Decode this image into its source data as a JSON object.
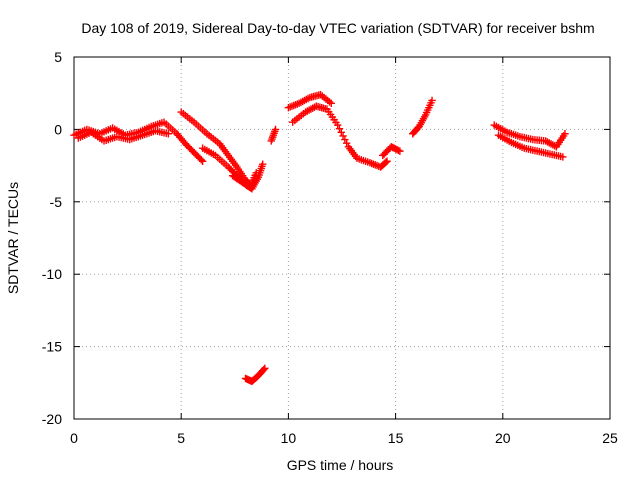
{
  "chart_data": {
    "type": "scatter",
    "title": "Day 108 of 2019, Sidereal Day-to-day VTEC variation (SDTVAR) for receiver bshm",
    "xlabel": "GPS time / hours",
    "ylabel": "SDTVAR / TECUs",
    "xlim": [
      0,
      25
    ],
    "ylim": [
      -20,
      5
    ],
    "xticks": [
      0,
      5,
      10,
      15,
      20,
      25
    ],
    "yticks": [
      5,
      0,
      -5,
      -10,
      -15,
      -20
    ],
    "grid": true,
    "marker": "plus",
    "series": [
      {
        "name": "SDTVAR",
        "color": "#ff0000",
        "segments": [
          {
            "x": [
              0.0,
              0.6,
              1.2,
              1.8,
              2.4,
              3.0,
              3.6,
              4.2,
              4.8,
              5.2,
              5.6,
              6.0
            ],
            "y": [
              -0.4,
              0.0,
              -0.3,
              0.1,
              -0.4,
              -0.2,
              0.2,
              0.5,
              -0.3,
              -1.0,
              -1.6,
              -2.2
            ]
          },
          {
            "x": [
              0.2,
              0.8,
              1.4,
              2.0,
              2.6,
              3.2,
              3.8,
              4.4
            ],
            "y": [
              -0.6,
              -0.2,
              -0.8,
              -0.5,
              -0.7,
              -0.4,
              -0.1,
              -0.3
            ]
          },
          {
            "x": [
              5.0,
              5.6,
              6.2,
              6.8,
              7.2,
              7.6,
              8.0,
              8.2
            ],
            "y": [
              1.2,
              0.5,
              -0.3,
              -1.0,
              -1.8,
              -2.6,
              -3.5,
              -3.8
            ]
          },
          {
            "x": [
              6.0,
              6.6,
              7.2,
              7.6,
              8.0,
              8.3,
              8.6,
              8.8
            ],
            "y": [
              -1.3,
              -1.8,
              -2.6,
              -3.2,
              -3.8,
              -4.1,
              -3.3,
              -2.4
            ]
          },
          {
            "x": [
              7.4,
              7.8,
              8.2,
              8.5
            ],
            "y": [
              -3.2,
              -3.6,
              -4.0,
              -3.0
            ]
          },
          {
            "x": [
              9.2,
              9.4
            ],
            "y": [
              -0.8,
              0.0
            ]
          },
          {
            "x": [
              10.0,
              10.5,
              11.0,
              11.5,
              12.0
            ],
            "y": [
              1.5,
              1.8,
              2.2,
              2.4,
              1.8
            ]
          },
          {
            "x": [
              10.2,
              10.8,
              11.3,
              11.8,
              12.3,
              12.8,
              13.2,
              13.8,
              14.3,
              14.6
            ],
            "y": [
              0.5,
              1.2,
              1.6,
              1.4,
              0.3,
              -1.2,
              -2.0,
              -2.3,
              -2.6,
              -2.2
            ]
          },
          {
            "x": [
              14.4,
              14.8,
              15.2
            ],
            "y": [
              -1.8,
              -1.2,
              -1.5
            ]
          },
          {
            "x": [
              15.8,
              16.1,
              16.4,
              16.7
            ],
            "y": [
              -0.3,
              0.2,
              1.0,
              2.0
            ]
          },
          {
            "x": [
              19.6,
              20.2,
              20.8,
              21.4,
              22.0,
              22.5,
              22.9
            ],
            "y": [
              0.3,
              -0.2,
              -0.5,
              -0.7,
              -0.8,
              -1.2,
              -0.3
            ]
          },
          {
            "x": [
              19.8,
              20.4,
              21.0,
              21.6,
              22.2,
              22.8
            ],
            "y": [
              -0.4,
              -0.9,
              -1.3,
              -1.5,
              -1.7,
              -1.9
            ]
          },
          {
            "x": [
              8.0,
              8.3,
              8.6,
              8.9
            ],
            "y": [
              -17.2,
              -17.4,
              -17.0,
              -16.5
            ]
          }
        ]
      }
    ]
  }
}
